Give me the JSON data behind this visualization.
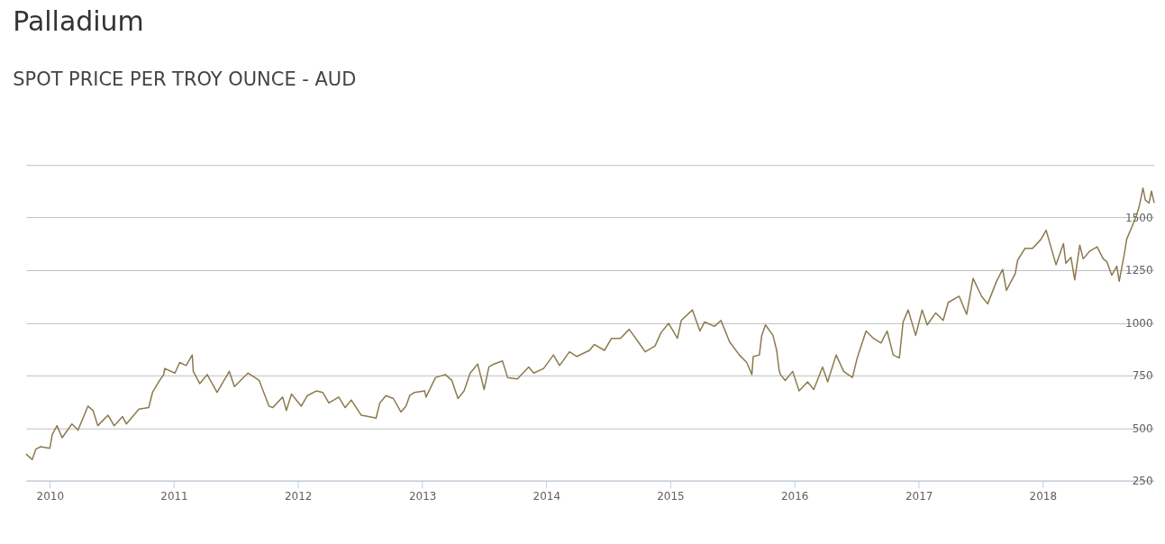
{
  "chart_data": {
    "type": "line",
    "title": "Palladium",
    "subtitle": "SPOT PRICE PER TROY OUNCE - AUD",
    "x": [
      "2009-10-23",
      "2009-11-10",
      "2009-11-21",
      "2009-12-05",
      "2010-01-01",
      "2010-01-08",
      "2010-01-22",
      "2010-02-06",
      "2010-03-07",
      "2010-03-25",
      "2010-04-23",
      "2010-05-08",
      "2010-05-22",
      "2010-06-21",
      "2010-07-09",
      "2010-08-03",
      "2010-08-14",
      "2010-09-20",
      "2010-10-19",
      "2010-10-30",
      "2010-11-17",
      "2010-12-02",
      "2010-12-05",
      "2011-01-04",
      "2011-01-18",
      "2011-02-06",
      "2011-02-24",
      "2011-02-27",
      "2011-03-18",
      "2011-04-09",
      "2011-05-08",
      "2011-06-13",
      "2011-06-28",
      "2011-08-07",
      "2011-09-09",
      "2011-10-08",
      "2011-10-19",
      "2011-11-17",
      "2011-11-28",
      "2011-12-13",
      "2012-01-11",
      "2012-01-29",
      "2012-02-24",
      "2012-03-14",
      "2012-04-01",
      "2012-04-30",
      "2012-05-19",
      "2012-06-06",
      "2012-07-05",
      "2012-07-27",
      "2012-08-18",
      "2012-08-29",
      "2012-09-16",
      "2012-10-08",
      "2012-10-30",
      "2012-11-14",
      "2012-11-25",
      "2012-12-09",
      "2013-01-08",
      "2013-01-12",
      "2013-02-09",
      "2013-03-10",
      "2013-03-29",
      "2013-04-16",
      "2013-05-04",
      "2013-05-22",
      "2013-06-13",
      "2013-07-02",
      "2013-07-16",
      "2013-07-31",
      "2013-08-25",
      "2013-09-09",
      "2013-10-08",
      "2013-11-10",
      "2013-11-25",
      "2013-12-24",
      "2014-01-22",
      "2014-02-09",
      "2014-03-10",
      "2014-04-01",
      "2014-05-08",
      "2014-05-22",
      "2014-06-21",
      "2014-07-12",
      "2014-08-07",
      "2014-09-02",
      "2014-10-04",
      "2014-10-19",
      "2014-11-17",
      "2014-12-05",
      "2014-12-27",
      "2015-01-22",
      "2015-02-02",
      "2015-03-07",
      "2015-03-21",
      "2015-03-29",
      "2015-04-12",
      "2015-05-11",
      "2015-05-30",
      "2015-06-24",
      "2015-07-23",
      "2015-08-14",
      "2015-08-29",
      "2015-09-02",
      "2015-09-20",
      "2015-09-27",
      "2015-10-08",
      "2015-10-30",
      "2015-11-10",
      "2015-11-17",
      "2015-11-21",
      "2015-12-05",
      "2015-12-27",
      "2016-01-15",
      "2016-02-09",
      "2016-02-27",
      "2016-03-24",
      "2016-04-08",
      "2016-05-03",
      "2016-05-25",
      "2016-06-20",
      "2016-07-04",
      "2016-07-30",
      "2016-08-21",
      "2016-09-12",
      "2016-09-30",
      "2016-10-18",
      "2016-11-05",
      "2016-11-16",
      "2016-12-01",
      "2016-12-23",
      "2017-01-11",
      "2017-01-26",
      "2017-02-20",
      "2017-03-14",
      "2017-03-29",
      "2017-04-30",
      "2017-05-22",
      "2017-06-10",
      "2017-07-05",
      "2017-07-23",
      "2017-08-18",
      "2017-09-05",
      "2017-09-16",
      "2017-10-12",
      "2017-10-19",
      "2017-11-10",
      "2017-12-02",
      "2017-12-27",
      "2018-01-11",
      "2018-02-09",
      "2018-03-03",
      "2018-03-10",
      "2018-03-25",
      "2018-04-05",
      "2018-04-20",
      "2018-04-30",
      "2018-05-19",
      "2018-06-10",
      "2018-06-28",
      "2018-07-09",
      "2018-07-23",
      "2018-08-07",
      "2018-08-14",
      "2018-08-29",
      "2018-09-05",
      "2018-09-20",
      "2018-10-04",
      "2018-10-12",
      "2018-10-23",
      "2018-10-30",
      "2018-11-10",
      "2018-11-17",
      "2018-11-25"
    ],
    "series": [
      {
        "color": "#8c7a4e",
        "values": [
          376,
          350,
          400,
          411,
          404,
          469,
          511,
          454,
          519,
          490,
          604,
          583,
          511,
          561,
          511,
          554,
          519,
          590,
          597,
          669,
          719,
          754,
          783,
          761,
          811,
          797,
          847,
          769,
          711,
          754,
          669,
          769,
          697,
          761,
          726,
          604,
          597,
          647,
          583,
          661,
          604,
          654,
          676,
          669,
          619,
          647,
          597,
          633,
          561,
          554,
          547,
          619,
          654,
          640,
          576,
          604,
          654,
          669,
          676,
          647,
          740,
          754,
          726,
          640,
          676,
          761,
          804,
          683,
          790,
          804,
          819,
          740,
          733,
          790,
          761,
          783,
          847,
          797,
          862,
          840,
          869,
          897,
          869,
          926,
          926,
          969,
          897,
          862,
          890,
          954,
          997,
          926,
          1011,
          1061,
          997,
          961,
          1004,
          983,
          1011,
          911,
          847,
          811,
          754,
          840,
          847,
          940,
          990,
          940,
          869,
          776,
          754,
          726,
          769,
          676,
          719,
          683,
          790,
          719,
          847,
          769,
          740,
          833,
          961,
          926,
          904,
          961,
          847,
          833,
          1004,
          1061,
          940,
          1061,
          990,
          1047,
          1011,
          1097,
          1126,
          1040,
          1211,
          1126,
          1090,
          1197,
          1254,
          1154,
          1233,
          1297,
          1354,
          1354,
          1397,
          1440,
          1276,
          1376,
          1283,
          1311,
          1204,
          1369,
          1304,
          1340,
          1361,
          1304,
          1290,
          1226,
          1269,
          1197,
          1326,
          1397,
          1454,
          1511,
          1554,
          1640,
          1583,
          1569,
          1626,
          1569
        ]
      }
    ],
    "xlim": [
      "2009-10-23",
      "2018-11-25"
    ],
    "xticks": [
      "2010",
      "2011",
      "2012",
      "2013",
      "2014",
      "2015",
      "2016",
      "2017",
      "2018"
    ],
    "ylim": [
      250,
      1750
    ],
    "yticks": [
      250,
      500,
      750,
      1000,
      1250,
      1500,
      {
        "value": 1750,
        "label": null
      }
    ],
    "grid": "y",
    "marker": "none",
    "line_style": "solid"
  }
}
